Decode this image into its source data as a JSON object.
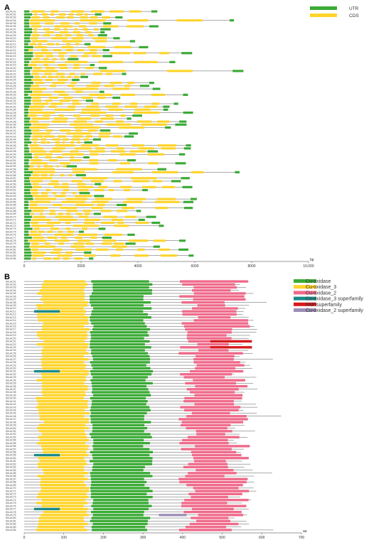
{
  "chart_data": [
    {
      "panel": "A",
      "type": "gene-structure",
      "legend": [
        {
          "name": "UTR",
          "color": "#3aaa35"
        },
        {
          "name": "CDS",
          "color": "#ffd42a"
        }
      ],
      "xlim": [
        0,
        10000
      ],
      "xticks": [
        0,
        2000,
        4000,
        6000,
        8000,
        10000
      ],
      "xtick_labels": [
        "0",
        "2000",
        "4000",
        "6000",
        "8000",
        "10,000"
      ],
      "axis_unit_label": "bp",
      "row_prefix": "SlrLAC",
      "row_count": 84
    },
    {
      "panel": "B",
      "type": "protein-domains",
      "legend": [
        {
          "name": "Cu-oxidase",
          "color": "#3aaa35"
        },
        {
          "name": "Cu-oxidase_3",
          "color": "#ffd42a"
        },
        {
          "name": "Cu-oxidase_2",
          "color": "#ef6a8a"
        },
        {
          "name": "Cu-oxidase_3 superfamily",
          "color": "#1a8a8a"
        },
        {
          "name": "FAP superfamily",
          "color": "#d7191c"
        },
        {
          "name": "Cu-oxidase_2 superfamily",
          "color": "#9b8fb5"
        }
      ],
      "xlim": [
        0,
        700
      ],
      "xticks": [
        0,
        100,
        200,
        300,
        400,
        500,
        600,
        700
      ],
      "xtick_labels": [
        "0",
        "100",
        "200",
        "300",
        "400",
        "500",
        "600",
        "700"
      ],
      "axis_unit_label": "aa",
      "row_prefix": "SlrLAC",
      "row_count": 84
    }
  ],
  "colors": {
    "utr": "#3aaa35",
    "cds": "#ffd42a",
    "intron_line": "#555555",
    "axis": "#333333"
  }
}
